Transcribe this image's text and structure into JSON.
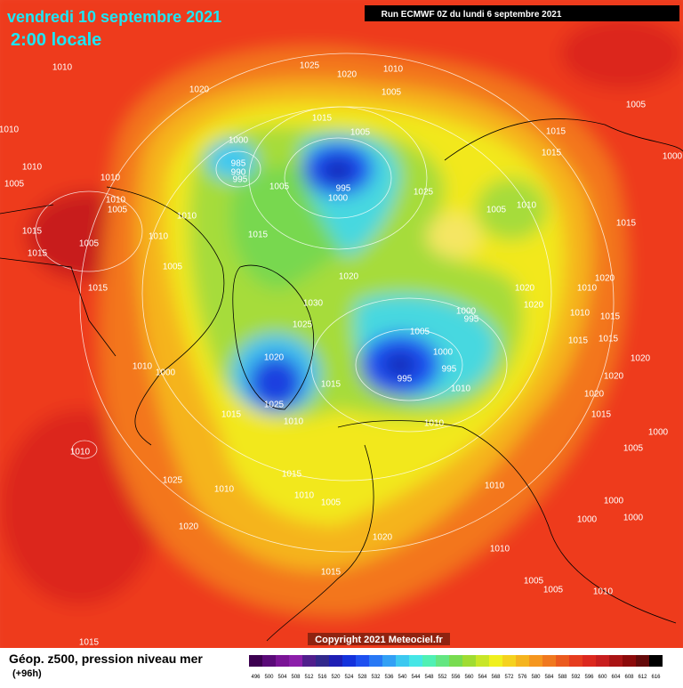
{
  "header": {
    "date": "vendredi 10 septembre 2021",
    "time": "2:00 locale",
    "run": "Run ECMWF 0Z du lundi 6 septembre 2021"
  },
  "footer": {
    "copyright": "Copyright 2021 Meteociel.fr",
    "field": "Géop. z500, pression niveau mer",
    "lead": "(+96h)"
  },
  "scale": {
    "labels": [
      496,
      500,
      504,
      508,
      512,
      516,
      520,
      524,
      528,
      532,
      536,
      540,
      544,
      548,
      552,
      556,
      560,
      564,
      568,
      572,
      576,
      580,
      584,
      588,
      592,
      596,
      600,
      604,
      608,
      612,
      616
    ],
    "colors": [
      "#3c0050",
      "#5a0a78",
      "#7a1496",
      "#8c1eaa",
      "#501e8c",
      "#32288c",
      "#1e1eb4",
      "#1432dc",
      "#1e50f0",
      "#2878f5",
      "#32a0f5",
      "#3cc8f0",
      "#46e6e6",
      "#50f0b4",
      "#64e682",
      "#78dc50",
      "#a0dc32",
      "#c8e628",
      "#f0f01e",
      "#f5d21e",
      "#f5b41e",
      "#f5961e",
      "#f0781e",
      "#eb5a1e",
      "#e63c1e",
      "#dc281e",
      "#c81e1e",
      "#aa1414",
      "#8c0a0a",
      "#640a0a",
      "#000000"
    ]
  },
  "isobars": [
    "1010",
    "1025",
    "1020",
    "1010",
    "1020",
    "1005",
    "1005",
    "1010",
    "1015",
    "1005",
    "1015",
    "1000",
    "1015",
    "1010",
    "1000",
    "985",
    "990",
    "995",
    "1010",
    "995",
    "1000",
    "1005",
    "1025",
    "1005",
    "1010",
    "1005",
    "1005",
    "1010",
    "1010",
    "1015",
    "1015",
    "1005",
    "1010",
    "1015",
    "1015",
    "1005",
    "1020",
    "1020",
    "1020",
    "1010",
    "1015",
    "1030",
    "1000",
    "995",
    "1020",
    "1010",
    "1015",
    "1025",
    "1005",
    "1000",
    "995",
    "1015",
    "1015",
    "1020",
    "1010",
    "1000",
    "1020",
    "995",
    "1010",
    "1020",
    "1015",
    "1020",
    "1025",
    "1015",
    "1015",
    "1010",
    "1010",
    "1000",
    "1010",
    "1005",
    "1025",
    "1015",
    "1010",
    "1010",
    "1005",
    "1010",
    "1000",
    "1020",
    "1000",
    "1000",
    "1020",
    "1010",
    "1015",
    "1005",
    "1005",
    "1010",
    "1015"
  ]
}
